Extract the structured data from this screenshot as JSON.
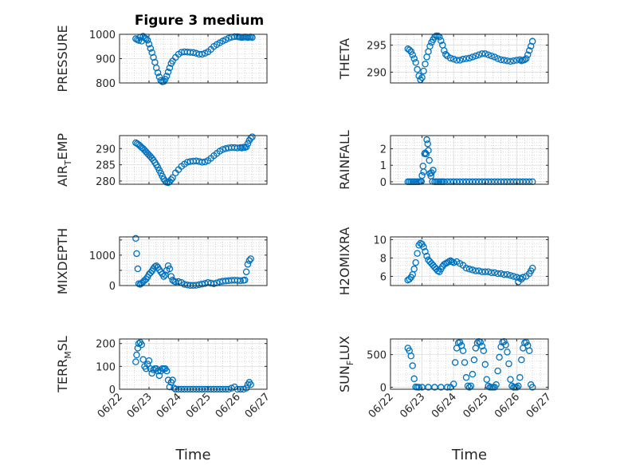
{
  "figure": {
    "title": "Figure 3 medium",
    "marker_color": "#0072BD",
    "grid": "major and minor (dotted)",
    "x_ticks": [
      "06/22",
      "06/23",
      "06/24",
      "06/25",
      "06/26",
      "06/27"
    ]
  },
  "chart_data": [
    {
      "type": "scatter",
      "title": "Figure 3 medium",
      "ylabel": "PRESSURE",
      "xlabel": "",
      "xlim": [
        0,
        5
      ],
      "ylim": [
        800,
        1000
      ],
      "yticks": [
        800,
        900,
        1000
      ],
      "ytick_labels": [
        "800",
        "900",
        "1000"
      ],
      "x": [
        0.55,
        0.6,
        0.65,
        0.7,
        0.75,
        0.8,
        0.85,
        0.9,
        0.95,
        1.0,
        1.05,
        1.1,
        1.15,
        1.2,
        1.25,
        1.3,
        1.35,
        1.4,
        1.45,
        1.5,
        1.55,
        1.6,
        1.65,
        1.7,
        1.75,
        1.8,
        1.9,
        2.0,
        2.1,
        2.2,
        2.3,
        2.4,
        2.5,
        2.6,
        2.7,
        2.8,
        2.9,
        3.0,
        3.1,
        3.2,
        3.3,
        3.4,
        3.5,
        3.6,
        3.7,
        3.8,
        3.9,
        4.0,
        4.05,
        4.1,
        4.15,
        4.2,
        4.25,
        4.3,
        4.35,
        4.4,
        4.45,
        4.5
      ],
      "values": [
        982,
        978,
        975,
        988,
        972,
        992,
        985,
        982,
        976,
        960,
        942,
        925,
        905,
        885,
        862,
        842,
        825,
        810,
        805,
        806,
        815,
        828,
        845,
        862,
        880,
        890,
        905,
        918,
        926,
        928,
        927,
        926,
        925,
        922,
        918,
        918,
        922,
        928,
        938,
        950,
        958,
        965,
        972,
        978,
        984,
        988,
        990,
        990,
        989,
        988,
        987,
        988,
        989,
        988,
        987,
        988,
        989,
        987
      ]
    },
    {
      "type": "scatter",
      "title": "",
      "ylabel": "THETA",
      "xlabel": "",
      "xlim": [
        0,
        5
      ],
      "ylim": [
        288,
        297
      ],
      "yticks": [
        290,
        295
      ],
      "ytick_labels": [
        "290",
        "295"
      ],
      "x": [
        0.55,
        0.6,
        0.65,
        0.7,
        0.75,
        0.8,
        0.85,
        0.9,
        0.95,
        1.0,
        1.05,
        1.1,
        1.15,
        1.2,
        1.25,
        1.3,
        1.35,
        1.4,
        1.45,
        1.5,
        1.55,
        1.6,
        1.65,
        1.7,
        1.75,
        1.8,
        1.9,
        2.0,
        2.1,
        2.2,
        2.3,
        2.4,
        2.5,
        2.6,
        2.7,
        2.8,
        2.9,
        3.0,
        3.1,
        3.2,
        3.3,
        3.4,
        3.5,
        3.6,
        3.7,
        3.8,
        3.9,
        4.0,
        4.1,
        4.15,
        4.2,
        4.25,
        4.3,
        4.35,
        4.4,
        4.45,
        4.5
      ],
      "values": [
        294.3,
        294.1,
        293.8,
        293.2,
        292.5,
        291.8,
        290.5,
        289.3,
        288.6,
        289.0,
        290.2,
        291.5,
        292.8,
        293.8,
        294.8,
        295.5,
        296.0,
        296.5,
        296.7,
        296.7,
        296.5,
        295.8,
        295.0,
        294.0,
        293.3,
        293.0,
        292.6,
        292.4,
        292.2,
        292.2,
        292.4,
        292.5,
        292.6,
        292.8,
        293.0,
        293.2,
        293.4,
        293.4,
        293.2,
        293.0,
        292.8,
        292.5,
        292.3,
        292.2,
        292.1,
        292.0,
        292.1,
        292.2,
        292.3,
        292.1,
        292.2,
        292.3,
        292.5,
        293.2,
        294.0,
        294.8,
        295.7
      ]
    },
    {
      "type": "scatter",
      "title": "",
      "ylabel": "AIR_TEMP",
      "xlabel": "",
      "xlim": [
        0,
        5
      ],
      "ylim": [
        279,
        294
      ],
      "yticks": [
        280,
        285,
        290
      ],
      "ytick_labels": [
        "280",
        "285",
        "290"
      ],
      "x": [
        0.55,
        0.6,
        0.65,
        0.7,
        0.75,
        0.8,
        0.85,
        0.9,
        0.95,
        1.0,
        1.05,
        1.1,
        1.15,
        1.2,
        1.25,
        1.3,
        1.35,
        1.4,
        1.45,
        1.5,
        1.55,
        1.6,
        1.65,
        1.7,
        1.75,
        1.8,
        1.9,
        2.0,
        2.1,
        2.2,
        2.3,
        2.4,
        2.5,
        2.6,
        2.7,
        2.8,
        2.9,
        3.0,
        3.1,
        3.2,
        3.3,
        3.4,
        3.5,
        3.6,
        3.7,
        3.8,
        3.9,
        4.0,
        4.1,
        4.15,
        4.2,
        4.25,
        4.3,
        4.35,
        4.4,
        4.45,
        4.5
      ],
      "values": [
        291.8,
        291.5,
        291.2,
        290.8,
        290.3,
        290.0,
        289.5,
        289.0,
        288.5,
        288.0,
        287.5,
        287.0,
        286.4,
        285.7,
        285.0,
        284.2,
        283.3,
        282.4,
        281.5,
        280.6,
        280.0,
        279.6,
        279.5,
        279.8,
        280.4,
        281.0,
        282.5,
        283.5,
        284.5,
        285.2,
        285.8,
        286.0,
        286.1,
        286.2,
        286.0,
        285.8,
        285.9,
        286.3,
        287.0,
        287.8,
        288.5,
        289.2,
        289.7,
        290.0,
        290.2,
        290.3,
        290.3,
        290.2,
        290.3,
        290.2,
        290.4,
        290.3,
        290.5,
        291.5,
        292.5,
        293.2,
        293.6
      ]
    },
    {
      "type": "scatter",
      "title": "",
      "ylabel": "RAINFALL",
      "xlabel": "",
      "xlim": [
        0,
        5
      ],
      "ylim": [
        -0.15,
        2.8
      ],
      "yticks": [
        0,
        1,
        2
      ],
      "ytick_labels": [
        "0",
        "1",
        "2"
      ],
      "x": [
        0.55,
        0.6,
        0.65,
        0.7,
        0.75,
        0.8,
        0.85,
        0.9,
        0.95,
        0.98,
        1.0,
        1.03,
        1.05,
        1.08,
        1.1,
        1.13,
        1.15,
        1.18,
        1.2,
        1.23,
        1.25,
        1.28,
        1.3,
        1.33,
        1.35,
        1.4,
        1.45,
        1.5,
        1.55,
        1.6,
        1.65,
        1.7,
        1.8,
        1.9,
        2.0,
        2.1,
        2.2,
        2.3,
        2.4,
        2.5,
        2.6,
        2.7,
        2.8,
        2.9,
        3.0,
        3.1,
        3.2,
        3.3,
        3.4,
        3.5,
        3.6,
        3.7,
        3.8,
        3.9,
        4.0,
        4.1,
        4.2,
        4.3,
        4.4,
        4.5
      ],
      "values": [
        0,
        0,
        0,
        0,
        0,
        0,
        0,
        0,
        0.02,
        0.02,
        0.38,
        0.95,
        0.6,
        1.7,
        1.75,
        1.68,
        2.55,
        2.3,
        1.9,
        1.3,
        0.5,
        0.35,
        0.55,
        0.02,
        0.7,
        0,
        0,
        0,
        0,
        0,
        0,
        0,
        0,
        0,
        0,
        0,
        0,
        0,
        0,
        0,
        0,
        0,
        0,
        0,
        0,
        0,
        0,
        0,
        0,
        0,
        0,
        0,
        0,
        0,
        0,
        0,
        0,
        0,
        0,
        0
      ]
    },
    {
      "type": "scatter",
      "title": "",
      "ylabel": "MIXDEPTH",
      "xlabel": "",
      "xlim": [
        0,
        5
      ],
      "ylim": [
        0,
        1600
      ],
      "yticks": [
        0,
        500,
        1000,
        1500
      ],
      "ytick_labels": [
        "0",
        "",
        "1000",
        ""
      ],
      "x": [
        0.55,
        0.58,
        0.62,
        0.65,
        0.7,
        0.75,
        0.8,
        0.85,
        0.9,
        0.95,
        1.0,
        1.05,
        1.1,
        1.15,
        1.2,
        1.25,
        1.3,
        1.35,
        1.4,
        1.45,
        1.5,
        1.55,
        1.6,
        1.65,
        1.7,
        1.75,
        1.8,
        1.85,
        1.9,
        2.0,
        2.1,
        2.2,
        2.3,
        2.4,
        2.5,
        2.6,
        2.7,
        2.8,
        2.9,
        3.0,
        3.1,
        3.2,
        3.3,
        3.4,
        3.5,
        3.6,
        3.7,
        3.8,
        3.9,
        4.0,
        4.1,
        4.2,
        4.25,
        4.3,
        4.35,
        4.4,
        4.45
      ],
      "values": [
        1550,
        1050,
        550,
        60,
        40,
        80,
        120,
        170,
        210,
        280,
        370,
        420,
        480,
        560,
        620,
        650,
        600,
        520,
        450,
        380,
        300,
        350,
        500,
        650,
        550,
        300,
        180,
        140,
        120,
        130,
        100,
        40,
        20,
        5,
        5,
        10,
        30,
        50,
        70,
        100,
        80,
        60,
        90,
        120,
        140,
        150,
        160,
        170,
        175,
        170,
        160,
        170,
        180,
        450,
        700,
        820,
        880
      ]
    },
    {
      "type": "scatter",
      "title": "",
      "ylabel": "H2OMIXRA",
      "xlabel": "",
      "xlim": [
        0,
        5
      ],
      "ylim": [
        5,
        10.3
      ],
      "yticks": [
        6,
        8,
        10
      ],
      "ytick_labels": [
        "6",
        "8",
        "10"
      ],
      "x": [
        0.55,
        0.6,
        0.65,
        0.7,
        0.75,
        0.8,
        0.85,
        0.9,
        0.95,
        1.0,
        1.05,
        1.1,
        1.15,
        1.2,
        1.25,
        1.3,
        1.35,
        1.4,
        1.45,
        1.5,
        1.55,
        1.6,
        1.65,
        1.7,
        1.75,
        1.8,
        1.85,
        1.9,
        1.95,
        2.0,
        2.1,
        2.2,
        2.3,
        2.4,
        2.5,
        2.6,
        2.7,
        2.8,
        2.9,
        3.0,
        3.1,
        3.2,
        3.3,
        3.4,
        3.5,
        3.6,
        3.7,
        3.8,
        3.9,
        4.0,
        4.05,
        4.1,
        4.15,
        4.2,
        4.3,
        4.4,
        4.45,
        4.5
      ],
      "values": [
        5.6,
        5.7,
        5.9,
        6.2,
        6.8,
        7.5,
        8.5,
        9.4,
        9.6,
        9.5,
        9.2,
        8.7,
        8.2,
        7.8,
        7.6,
        7.4,
        7.2,
        7.0,
        6.8,
        6.6,
        6.5,
        6.8,
        7.1,
        7.3,
        7.4,
        7.5,
        7.6,
        7.7,
        7.6,
        7.5,
        7.6,
        7.4,
        7.2,
        6.9,
        6.8,
        6.7,
        6.6,
        6.6,
        6.5,
        6.5,
        6.5,
        6.4,
        6.4,
        6.3,
        6.3,
        6.2,
        6.2,
        6.1,
        6.0,
        5.9,
        5.4,
        5.8,
        5.7,
        5.9,
        6.0,
        6.3,
        6.6,
        6.9
      ]
    },
    {
      "type": "scatter",
      "title": "",
      "ylabel": "TERR_MSL",
      "xlabel": "Time",
      "xlim": [
        0,
        5
      ],
      "ylim": [
        0,
        220
      ],
      "yticks": [
        0,
        100,
        200
      ],
      "ytick_labels": [
        "0",
        "100",
        "200"
      ],
      "x": [
        0.55,
        0.58,
        0.62,
        0.65,
        0.7,
        0.75,
        0.8,
        0.85,
        0.9,
        0.95,
        1.0,
        1.05,
        1.1,
        1.15,
        1.2,
        1.25,
        1.3,
        1.35,
        1.4,
        1.45,
        1.5,
        1.55,
        1.6,
        1.65,
        1.7,
        1.75,
        1.8,
        1.85,
        1.9,
        2.0,
        2.1,
        2.2,
        2.3,
        2.4,
        2.5,
        2.6,
        2.7,
        2.8,
        2.9,
        3.0,
        3.1,
        3.2,
        3.3,
        3.4,
        3.5,
        3.6,
        3.7,
        3.8,
        3.9,
        4.0,
        4.1,
        4.2,
        4.3,
        4.35,
        4.4,
        4.45
      ],
      "values": [
        120,
        150,
        180,
        200,
        205,
        195,
        130,
        100,
        90,
        110,
        125,
        90,
        70,
        85,
        90,
        90,
        80,
        60,
        80,
        90,
        90,
        90,
        80,
        40,
        10,
        30,
        40,
        5,
        0,
        0,
        0,
        0,
        0,
        0,
        0,
        0,
        0,
        0,
        0,
        0,
        0,
        0,
        0,
        0,
        0,
        0,
        0,
        5,
        10,
        0,
        0,
        0,
        5,
        20,
        30,
        20
      ]
    },
    {
      "type": "scatter",
      "title": "",
      "ylabel": "SUN_FLUX",
      "xlabel": "Time",
      "xlim": [
        0,
        5
      ],
      "ylim": [
        -30,
        740
      ],
      "yticks": [
        0,
        500
      ],
      "ytick_labels": [
        "0",
        "500"
      ],
      "x": [
        0.55,
        0.6,
        0.65,
        0.7,
        0.75,
        0.8,
        0.85,
        0.9,
        1.0,
        1.2,
        1.4,
        1.6,
        1.8,
        1.9,
        2.0,
        2.05,
        2.1,
        2.15,
        2.2,
        2.25,
        2.3,
        2.35,
        2.4,
        2.45,
        2.5,
        2.55,
        2.6,
        2.65,
        2.7,
        2.75,
        2.8,
        2.85,
        2.9,
        2.95,
        3.0,
        3.05,
        3.1,
        3.15,
        3.2,
        3.25,
        3.3,
        3.35,
        3.4,
        3.45,
        3.5,
        3.55,
        3.6,
        3.65,
        3.7,
        3.75,
        3.8,
        3.85,
        3.9,
        3.95,
        4.0,
        4.05,
        4.1,
        4.15,
        4.2,
        4.25,
        4.3,
        4.35,
        4.4,
        4.45,
        4.5
      ],
      "values": [
        600,
        560,
        480,
        330,
        130,
        5,
        0,
        0,
        0,
        0,
        0,
        0,
        0,
        0,
        50,
        380,
        600,
        680,
        690,
        640,
        560,
        380,
        150,
        20,
        0,
        20,
        200,
        420,
        600,
        680,
        700,
        690,
        630,
        560,
        350,
        120,
        20,
        0,
        0,
        0,
        0,
        40,
        250,
        460,
        620,
        690,
        700,
        650,
        540,
        360,
        120,
        20,
        0,
        0,
        0,
        20,
        150,
        420,
        600,
        680,
        690,
        640,
        560,
        40,
        0
      ]
    }
  ]
}
